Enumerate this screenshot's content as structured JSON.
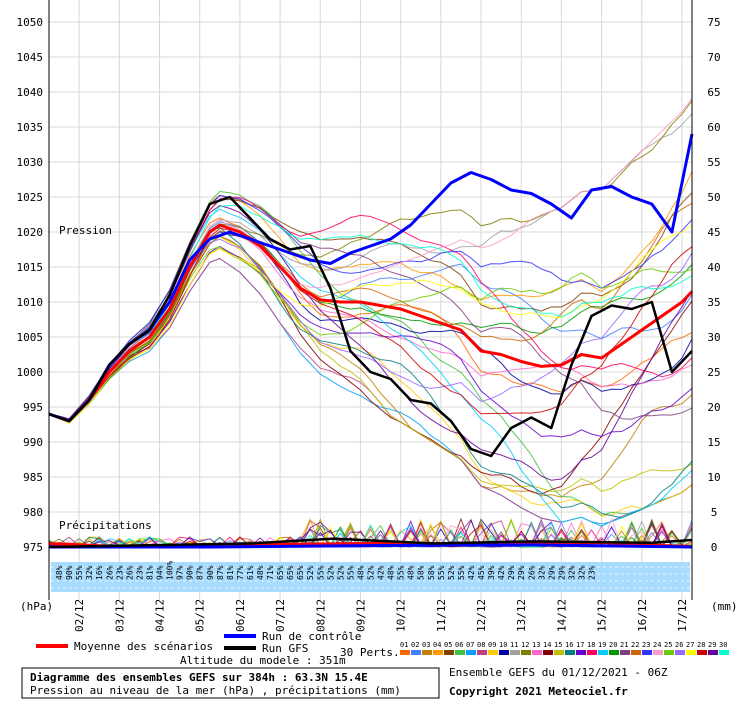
{
  "chart_data": {
    "type": "line",
    "panel_labels": {
      "pressure": "Pression",
      "precip": "Précipitations"
    },
    "y_left_ticks": [
      975,
      980,
      985,
      990,
      995,
      1000,
      1005,
      1010,
      1015,
      1020,
      1025,
      1030,
      1035,
      1040,
      1045,
      1050
    ],
    "y_right_ticks": [
      0,
      5,
      10,
      15,
      20,
      25,
      30,
      35,
      40,
      45,
      50,
      55,
      60,
      65,
      70,
      75
    ],
    "ylabel_left": "(hPa)",
    "ylabel_right": "(mm)",
    "ylim_pressure": [
      975,
      1050
    ],
    "ylim_precip": [
      0,
      75
    ],
    "x_range": [
      0,
      384
    ],
    "x_unit": "hours",
    "x_tick_labels": [
      "02/12",
      "03/12",
      "04/12",
      "05/12",
      "06/12",
      "07/12",
      "08/12",
      "09/12",
      "10/12",
      "11/12",
      "12/12",
      "13/12",
      "14/12",
      "15/12",
      "16/12",
      "17/12"
    ],
    "x_tick_hours": [
      18,
      42,
      66,
      90,
      114,
      138,
      162,
      186,
      210,
      234,
      258,
      282,
      306,
      330,
      354,
      378
    ],
    "probabilities": [
      "48%",
      "90%",
      "55%",
      "32%",
      "16%",
      "26%",
      "23%",
      "26%",
      "23%",
      "81%",
      "94%",
      "100%",
      "97%",
      "90%",
      "87%",
      "90%",
      "87%",
      "81%",
      "77%",
      "61%",
      "48%",
      "71%",
      "65%",
      "65%",
      "65%",
      "52%",
      "55%",
      "52%",
      "52%",
      "55%",
      "48%",
      "52%",
      "42%",
      "48%",
      "55%",
      "48%",
      "58%",
      "58%",
      "55%",
      "52%",
      "55%",
      "42%",
      "45%",
      "39%",
      "42%",
      "29%",
      "29%",
      "26%",
      "32%",
      "29%",
      "29%",
      "32%",
      "32%",
      "23%"
    ],
    "series": [
      {
        "name": "Moyenne des scénarios",
        "color": "#ff0000",
        "pressure": [
          [
            0,
            994
          ],
          [
            12,
            993
          ],
          [
            24,
            996
          ],
          [
            36,
            1000
          ],
          [
            48,
            1003
          ],
          [
            60,
            1005
          ],
          [
            72,
            1009
          ],
          [
            84,
            1015
          ],
          [
            96,
            1020
          ],
          [
            102,
            1021
          ],
          [
            114,
            1020
          ],
          [
            126,
            1018
          ],
          [
            138,
            1015
          ],
          [
            150,
            1012
          ],
          [
            162,
            1010.3
          ],
          [
            174,
            1010
          ],
          [
            186,
            1010
          ],
          [
            198,
            1009.5
          ],
          [
            210,
            1009
          ],
          [
            222,
            1008
          ],
          [
            234,
            1007
          ],
          [
            246,
            1006
          ],
          [
            258,
            1003
          ],
          [
            270,
            1002.5
          ],
          [
            282,
            1001.5
          ],
          [
            294,
            1000.8
          ],
          [
            306,
            1001
          ],
          [
            318,
            1002.5
          ],
          [
            330,
            1002
          ],
          [
            342,
            1004
          ],
          [
            354,
            1006
          ],
          [
            366,
            1008
          ],
          [
            378,
            1010
          ],
          [
            384,
            1011.5
          ]
        ],
        "precip": [
          [
            0,
            0.5
          ],
          [
            48,
            0
          ],
          [
            96,
            0.3
          ],
          [
            144,
            0.4
          ],
          [
            192,
            0.5
          ],
          [
            240,
            0.5
          ],
          [
            288,
            0.6
          ],
          [
            336,
            0.6
          ],
          [
            384,
            0
          ]
        ]
      },
      {
        "name": "Run de contrôle",
        "color": "#0000ff",
        "pressure": [
          [
            0,
            994
          ],
          [
            12,
            993
          ],
          [
            24,
            996
          ],
          [
            36,
            1001
          ],
          [
            48,
            1004
          ],
          [
            60,
            1006
          ],
          [
            72,
            1010
          ],
          [
            84,
            1016
          ],
          [
            96,
            1019
          ],
          [
            108,
            1020
          ],
          [
            120,
            1019
          ],
          [
            132,
            1018
          ],
          [
            144,
            1017
          ],
          [
            156,
            1016
          ],
          [
            168,
            1015.5
          ],
          [
            180,
            1017
          ],
          [
            192,
            1018
          ],
          [
            204,
            1019
          ],
          [
            216,
            1021
          ],
          [
            228,
            1024
          ],
          [
            240,
            1027
          ],
          [
            252,
            1028.5
          ],
          [
            264,
            1027.5
          ],
          [
            276,
            1026
          ],
          [
            288,
            1025.5
          ],
          [
            300,
            1024
          ],
          [
            312,
            1022
          ],
          [
            324,
            1026
          ],
          [
            336,
            1026.5
          ],
          [
            348,
            1025
          ],
          [
            360,
            1024
          ],
          [
            372,
            1020
          ],
          [
            384,
            1034
          ]
        ],
        "precip": [
          [
            0,
            0
          ],
          [
            96,
            0
          ],
          [
            192,
            0.2
          ],
          [
            288,
            0.3
          ],
          [
            384,
            0
          ]
        ]
      },
      {
        "name": "Run GFS",
        "color": "#000000",
        "pressure": [
          [
            0,
            994
          ],
          [
            12,
            993
          ],
          [
            24,
            996
          ],
          [
            36,
            1001
          ],
          [
            48,
            1004
          ],
          [
            60,
            1006
          ],
          [
            72,
            1011
          ],
          [
            84,
            1018
          ],
          [
            96,
            1024
          ],
          [
            108,
            1025
          ],
          [
            120,
            1022
          ],
          [
            132,
            1019
          ],
          [
            144,
            1017.5
          ],
          [
            156,
            1018
          ],
          [
            168,
            1012
          ],
          [
            180,
            1003
          ],
          [
            192,
            1000
          ],
          [
            204,
            999
          ],
          [
            216,
            996
          ],
          [
            228,
            995.5
          ],
          [
            240,
            993
          ],
          [
            252,
            989
          ],
          [
            264,
            988
          ],
          [
            276,
            992
          ],
          [
            288,
            993.5
          ],
          [
            300,
            992
          ],
          [
            312,
            1001
          ],
          [
            324,
            1008
          ],
          [
            336,
            1009.5
          ],
          [
            348,
            1009
          ],
          [
            360,
            1010
          ],
          [
            372,
            1000
          ],
          [
            384,
            1003
          ]
        ],
        "precip": [
          [
            0,
            0
          ],
          [
            120,
            0.5
          ],
          [
            170,
            1.2
          ],
          [
            230,
            0.5
          ],
          [
            288,
            0.8
          ],
          [
            360,
            0.6
          ],
          [
            384,
            1
          ]
        ]
      }
    ],
    "legend": {
      "mean": "Moyenne des scénarios",
      "control": "Run de contrôle",
      "gfs": "Run GFS",
      "perts": "30 Perts."
    },
    "pert_numbers": [
      "01",
      "02",
      "03",
      "04",
      "05",
      "06",
      "07",
      "08",
      "09",
      "10",
      "11",
      "12",
      "13",
      "14",
      "15",
      "16",
      "17",
      "18",
      "19",
      "20",
      "21",
      "22",
      "23",
      "24",
      "25",
      "26",
      "27",
      "28",
      "29",
      "30"
    ],
    "pert_colors": [
      "#ff6600",
      "#4080ff",
      "#c08000",
      "#ff9900",
      "#804000",
      "#40c040",
      "#00a0ff",
      "#c04080",
      "#ffcc00",
      "#0000a0",
      "#a0a0a0",
      "#808000",
      "#ff66cc",
      "#800000",
      "#c0c000",
      "#008080",
      "#6600cc",
      "#ff0066",
      "#00ccff",
      "#009900",
      "#804080",
      "#cc6600",
      "#3333ff",
      "#ff99cc",
      "#66cc00",
      "#9966ff",
      "#ffff00",
      "#cc0000",
      "#660099",
      "#00ffcc"
    ],
    "altitude": "Altitude du modele : 351m",
    "title_box": {
      "line1": "Diagramme des ensembles GEFS sur 384h : 63.3N 15.4E",
      "line2": "Pression au niveau de la mer (hPa) , précipitations (mm)"
    },
    "run_info": "Ensemble GEFS du 01/12/2021 - 06Z",
    "copyright": "Copyright 2021 Meteociel.fr"
  }
}
